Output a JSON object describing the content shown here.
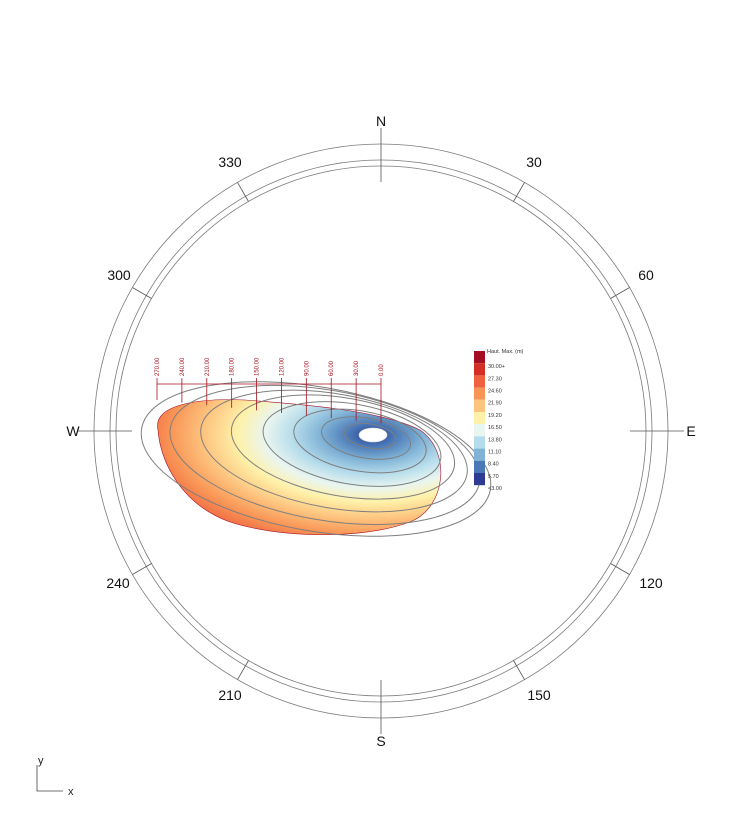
{
  "compass": {
    "cardinals": {
      "north": "N",
      "east": "E",
      "south": "S",
      "west": "W"
    },
    "bearings": [
      "30",
      "60",
      "120",
      "150",
      "210",
      "240",
      "300",
      "330"
    ]
  },
  "ruler": {
    "labels": [
      "270.00",
      "240.00",
      "210.00",
      "180.00",
      "150.00",
      "120.00",
      "90.00",
      "60.00",
      "30.00",
      "0.00"
    ]
  },
  "legend": {
    "title": "Haut. Max. (m)",
    "entries": [
      {
        "label": "30.00+",
        "color": "#a50f26"
      },
      {
        "label": "27.30",
        "color": "#d42f26"
      },
      {
        "label": "24.60",
        "color": "#ee6240"
      },
      {
        "label": "21.90",
        "color": "#f99455"
      },
      {
        "label": "19.20",
        "color": "#fdc47f"
      },
      {
        "label": "16.50",
        "color": "#fef1a9"
      },
      {
        "label": "13.80",
        "color": "#e9f5f0"
      },
      {
        "label": "11.10",
        "color": "#b5dceb"
      },
      {
        "label": "8.40",
        "color": "#7fb2d6"
      },
      {
        "label": "5.70",
        "color": "#4a78b6"
      },
      {
        "label": "<3.00",
        "color": "#2e3b93"
      }
    ]
  },
  "axes": {
    "y": "y",
    "x": "x"
  }
}
